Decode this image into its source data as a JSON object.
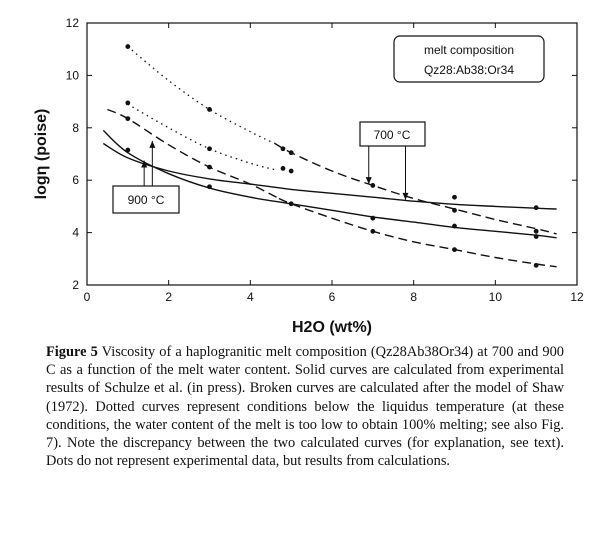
{
  "chart_data": {
    "type": "line",
    "xlabel": "H2O  (wt%)",
    "ylabel": "logη  (poise)",
    "xlim": [
      0,
      12
    ],
    "ylim": [
      2,
      12
    ],
    "xticks": [
      "0",
      "2",
      "4",
      "6",
      "8",
      "10",
      "12"
    ],
    "yticks": [
      "2",
      "4",
      "6",
      "8",
      "10",
      "12"
    ],
    "grid": false,
    "legend_box": [
      "melt composition",
      "Qz28:Ab38:Or34"
    ],
    "labels": {
      "t700": "700  °C",
      "t900": "900  °C"
    },
    "series": [
      {
        "style": "solid",
        "x": [
          0.4,
          1.0,
          2.0,
          3.0,
          4.0,
          5.0,
          6.0,
          7.0,
          8.0,
          9.0,
          10.0,
          11.0,
          11.5
        ],
        "y": [
          7.4,
          6.85,
          6.35,
          6.05,
          5.85,
          5.65,
          5.5,
          5.35,
          5.2,
          5.08,
          5.0,
          4.93,
          4.9
        ]
      },
      {
        "style": "solid",
        "x": [
          0.4,
          1.0,
          2.0,
          3.0,
          4.0,
          5.0,
          6.0,
          7.0,
          8.0,
          9.0,
          10.0,
          11.0,
          11.5
        ],
        "y": [
          7.9,
          7.05,
          6.25,
          5.7,
          5.35,
          5.1,
          4.85,
          4.6,
          4.4,
          4.2,
          4.05,
          3.9,
          3.8
        ]
      },
      {
        "style": "dashed",
        "x": [
          4.6,
          5.0,
          6.0,
          7.0,
          8.0,
          9.0,
          10.0,
          11.0,
          11.5
        ],
        "y": [
          7.4,
          7.05,
          6.35,
          5.8,
          5.3,
          4.9,
          4.5,
          4.15,
          3.95
        ]
      },
      {
        "style": "dashed",
        "x": [
          4.7,
          5.0,
          6.0,
          7.0,
          8.0,
          9.0,
          10.0,
          11.0,
          11.5
        ],
        "y": [
          5.3,
          5.1,
          4.55,
          4.05,
          3.65,
          3.35,
          3.05,
          2.8,
          2.7
        ]
      },
      {
        "style": "dotted",
        "x": [
          1.0,
          2.0,
          3.0,
          4.0,
          4.6
        ],
        "y": [
          11.1,
          9.8,
          8.7,
          7.85,
          7.4
        ]
      },
      {
        "style": "dotted",
        "x": [
          1.0,
          2.0,
          3.0,
          4.0,
          4.6
        ],
        "y": [
          8.9,
          8.0,
          7.2,
          6.65,
          6.4
        ]
      },
      {
        "style": "dashed",
        "x": [
          0.5,
          1.0,
          2.0,
          3.0,
          4.0,
          4.7
        ],
        "y": [
          8.7,
          8.35,
          7.35,
          6.5,
          5.85,
          5.3
        ]
      }
    ],
    "points": [
      {
        "x": 1.0,
        "y": 11.1
      },
      {
        "x": 1.0,
        "y": 8.95
      },
      {
        "x": 1.0,
        "y": 8.35
      },
      {
        "x": 1.0,
        "y": 7.15
      },
      {
        "x": 3.0,
        "y": 8.7
      },
      {
        "x": 3.0,
        "y": 7.2
      },
      {
        "x": 3.0,
        "y": 6.5
      },
      {
        "x": 3.0,
        "y": 5.75
      },
      {
        "x": 4.8,
        "y": 7.2
      },
      {
        "x": 5.0,
        "y": 7.05
      },
      {
        "x": 4.8,
        "y": 6.45
      },
      {
        "x": 5.0,
        "y": 6.35
      },
      {
        "x": 5.0,
        "y": 5.1
      },
      {
        "x": 7.0,
        "y": 5.8
      },
      {
        "x": 7.0,
        "y": 4.55
      },
      {
        "x": 7.0,
        "y": 4.05
      },
      {
        "x": 9.0,
        "y": 5.35
      },
      {
        "x": 9.0,
        "y": 4.85
      },
      {
        "x": 9.0,
        "y": 4.25
      },
      {
        "x": 9.0,
        "y": 3.35
      },
      {
        "x": 11.0,
        "y": 4.95
      },
      {
        "x": 11.0,
        "y": 4.05
      },
      {
        "x": 11.0,
        "y": 3.85
      },
      {
        "x": 11.0,
        "y": 2.75
      }
    ],
    "annotations": [
      {
        "label": "t700",
        "arrows": [
          {
            "x": 6.9,
            "y": 5.85
          },
          {
            "x": 7.8,
            "y": 5.25
          }
        ]
      },
      {
        "label": "t900",
        "arrows": [
          {
            "x": 1.4,
            "y": 6.75
          },
          {
            "x": 1.6,
            "y": 7.5
          }
        ]
      }
    ]
  },
  "caption": {
    "label": "Figure 5",
    "text": "Viscosity of a haplogranitic melt composition (Qz28Ab38Or34) at 700 and 900 C as a function of the melt water content. Solid curves are calculated from experimental results of Schulze et al. (in press). Broken curves are calculated after the model of Shaw (1972). Dotted curves represent conditions below the liquidus temperature (at these conditions, the water content of the melt is too low to obtain 100% melting; see also Fig. 7). Note the discrepancy between the two calculated curves (for explanation, see text). Dots do not represent experimental data, but results from calculations."
  }
}
